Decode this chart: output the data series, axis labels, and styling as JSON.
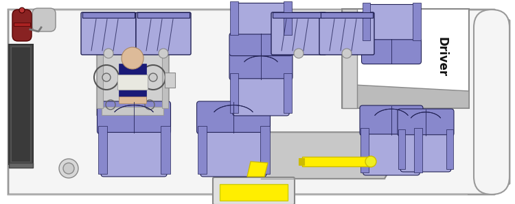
{
  "seat_fill": "#8888cc",
  "seat_fill_light": "#aaaadd",
  "seat_edge": "#333388",
  "seat_edge_dark": "#222255",
  "dark_blue": "#1a1a77",
  "yellow": "#ffee00",
  "yellow_dark": "#ccbb00",
  "gray_dark": "#555555",
  "gray_med": "#888888",
  "gray_light": "#cccccc",
  "gray_panel": "#c0c0c0",
  "gray_bg": "#d8d8d8",
  "red_dark": "#882222",
  "beige": "#ddbb99",
  "white": "#ffffff",
  "van_fill": "#f5f5f5",
  "van_edge": "#aaaaaa",
  "driver_text": "Driver",
  "driver_text_color": "#111111",
  "driver_text_size": 12
}
